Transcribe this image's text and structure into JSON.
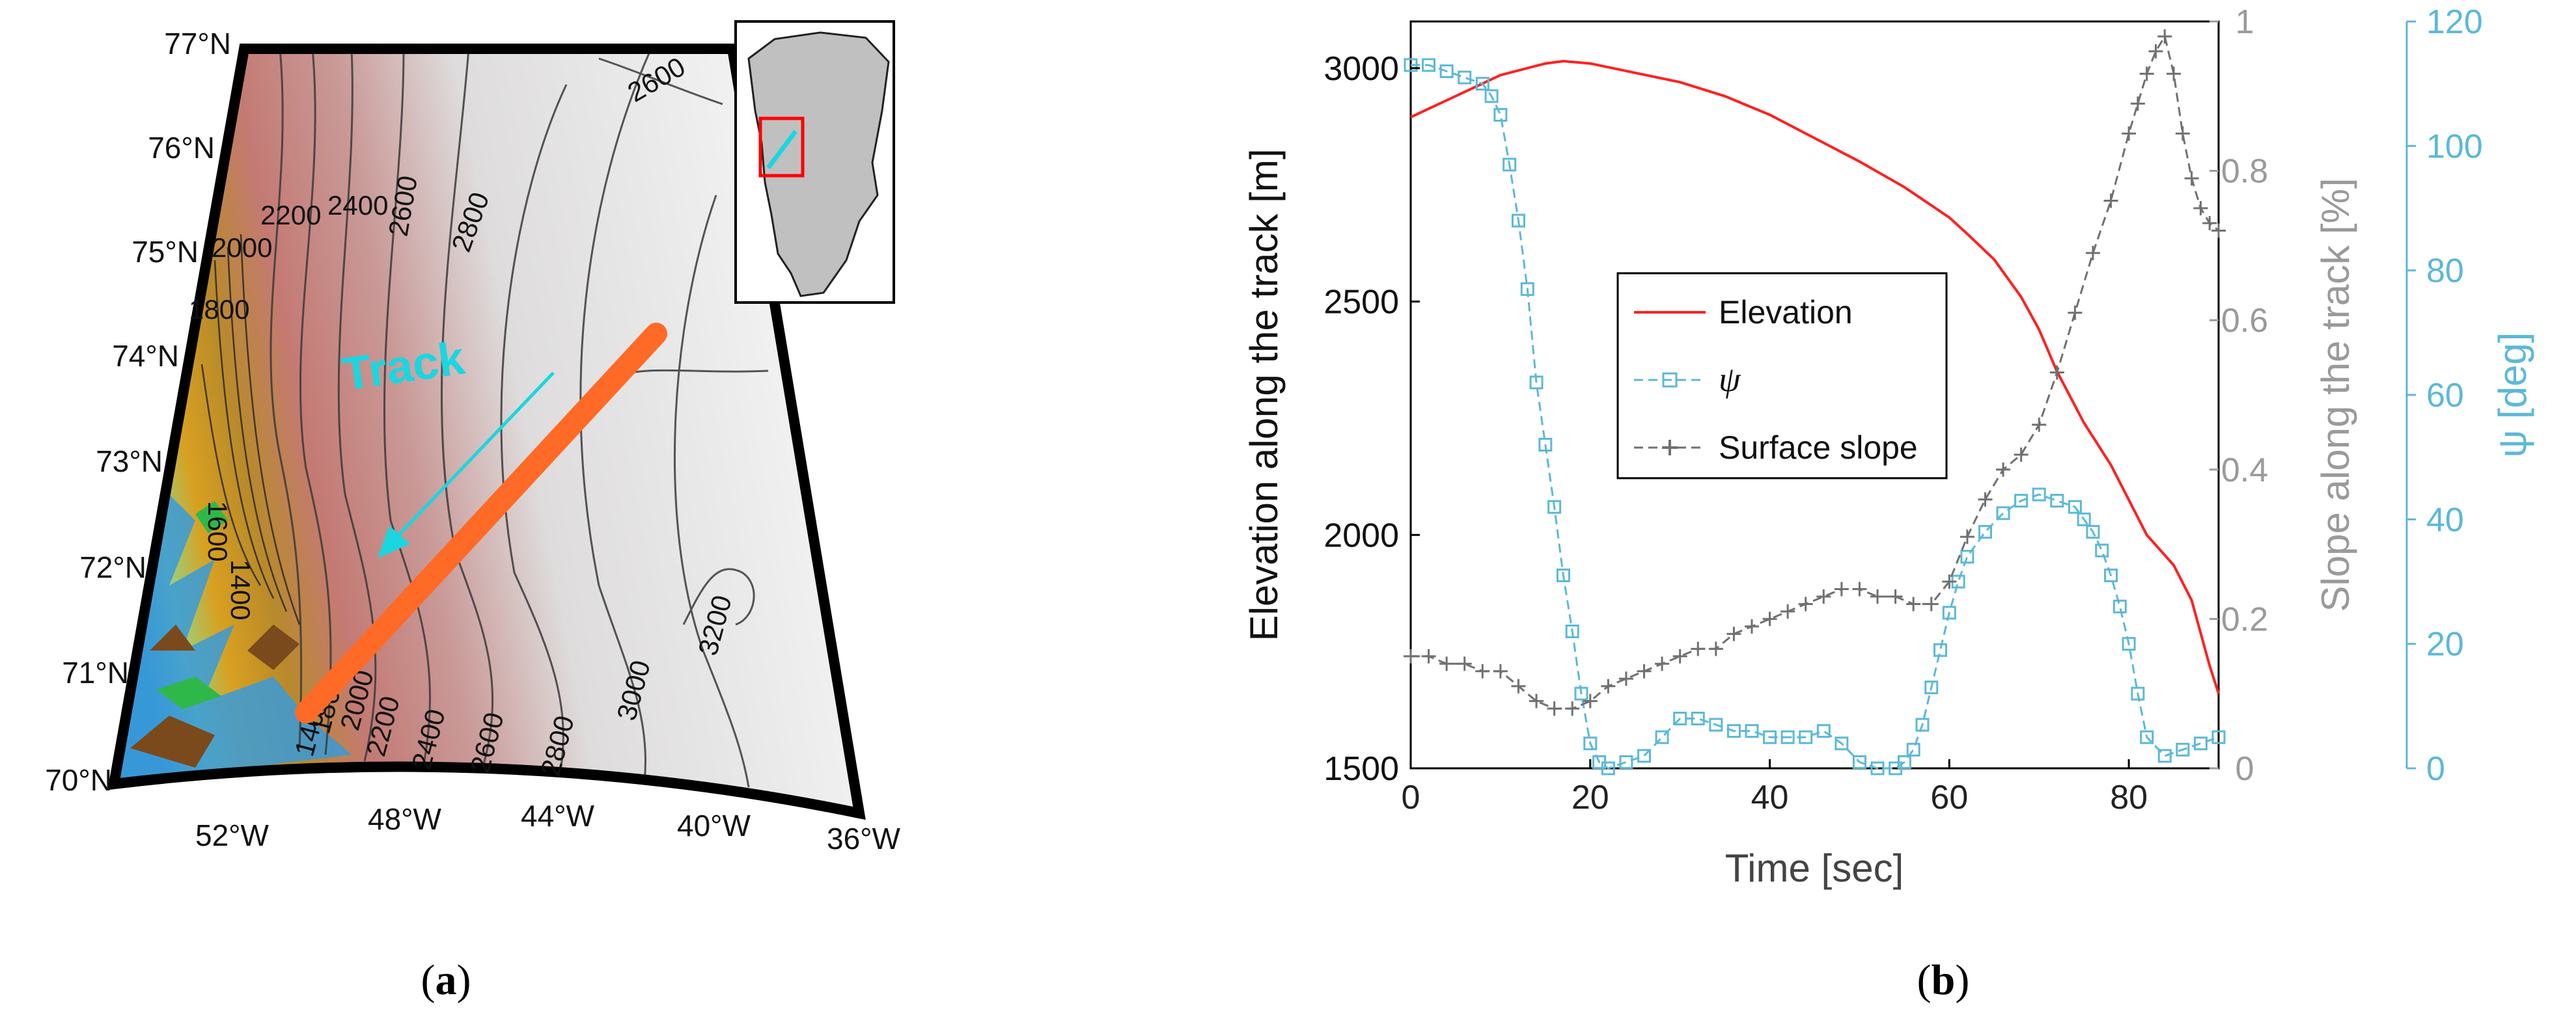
{
  "panel_a": {
    "label_open": "(",
    "label_letter": "a",
    "label_close": ")",
    "lat_labels": [
      "77°N",
      "76°N",
      "75°N",
      "74°N",
      "73°N",
      "72°N",
      "71°N",
      "70°N"
    ],
    "lon_labels": [
      "52°W",
      "48°W",
      "44°W",
      "40°W",
      "36°W"
    ],
    "contour_labels": [
      "2600",
      "2800",
      "2400",
      "2600",
      "2200",
      "2000",
      "1800",
      "1600",
      "1400",
      "3200",
      "3000",
      "2800",
      "2600",
      "2400",
      "2200",
      "2000",
      "1800",
      "1400"
    ],
    "track_label": "Track",
    "colors": {
      "track": "#ff6a26",
      "arrow": "#1ad6e0",
      "inset_box": "#ff0000",
      "frame": "#000000",
      "ice_high": "#e8e6e6",
      "ice_mid": "#c47a74",
      "coast": "#d8a020"
    }
  },
  "panel_b": {
    "label_open": "(",
    "label_letter": "b",
    "label_close": ")",
    "chart_data": {
      "type": "line",
      "title": "",
      "xlabel": "Time [sec]",
      "ylabel_left": "Elevation along the track [m]",
      "ylabel_right1": "Slope along the track [%]",
      "ylabel_right2": "ψ [deg]",
      "xlim": [
        0,
        90
      ],
      "xticks": [
        0,
        20,
        40,
        60,
        80
      ],
      "ylim_left": [
        1500,
        3100
      ],
      "yticks_left": [
        1500,
        2000,
        2500,
        3000
      ],
      "ylim_right1": [
        0,
        1
      ],
      "yticks_right1": [
        "0",
        "0.2",
        "0.4",
        "0.6",
        "0.8",
        "1"
      ],
      "ylim_right2": [
        0,
        120
      ],
      "yticks_right2": [
        "0",
        "20",
        "40",
        "60",
        "80",
        "100",
        "120"
      ],
      "legend": "inside-middle-left",
      "series": [
        {
          "name": "Elevation",
          "axis": "left",
          "color": "#ff2020",
          "marker": "none",
          "x": [
            0,
            5,
            10,
            15,
            17,
            20,
            25,
            30,
            35,
            40,
            45,
            50,
            55,
            60,
            62,
            65,
            68,
            70,
            72,
            75,
            78,
            80,
            82,
            85,
            87,
            88,
            89,
            90
          ],
          "y": [
            2895,
            2940,
            2985,
            3010,
            3015,
            3010,
            2990,
            2970,
            2940,
            2900,
            2850,
            2800,
            2745,
            2680,
            2645,
            2590,
            2510,
            2440,
            2350,
            2240,
            2150,
            2075,
            2000,
            1935,
            1860,
            1790,
            1720,
            1660
          ]
        },
        {
          "name": "ψ",
          "axis": "right2",
          "color": "#5cb8d8",
          "marker": "square",
          "x": [
            0,
            2,
            4,
            6,
            8,
            9,
            10,
            11,
            12,
            13,
            14,
            15,
            16,
            17,
            18,
            19,
            20,
            21,
            22,
            24,
            26,
            28,
            30,
            32,
            34,
            36,
            38,
            40,
            42,
            44,
            46,
            48,
            50,
            52,
            54,
            55,
            56,
            57,
            58,
            59,
            60,
            61,
            62,
            64,
            66,
            68,
            70,
            72,
            74,
            75,
            76,
            77,
            78,
            79,
            80,
            81,
            82,
            84,
            86,
            88,
            90
          ],
          "y": [
            113,
            113,
            112,
            111,
            110,
            108,
            105,
            97,
            88,
            77,
            62,
            52,
            42,
            31,
            22,
            12,
            4,
            1,
            0,
            1,
            2,
            5,
            8,
            8,
            7,
            6,
            6,
            5,
            5,
            5,
            6,
            4,
            1,
            0,
            0,
            1,
            3,
            7,
            13,
            19,
            25,
            30,
            34,
            38,
            41,
            43,
            44,
            43,
            42,
            40,
            38,
            35,
            31,
            26,
            20,
            12,
            5,
            2,
            3,
            4,
            5
          ]
        },
        {
          "name": "Surface slope",
          "axis": "right1",
          "color": "#707070",
          "marker": "plus",
          "x": [
            0,
            2,
            4,
            6,
            8,
            10,
            12,
            14,
            16,
            18,
            20,
            22,
            24,
            26,
            28,
            30,
            32,
            34,
            36,
            38,
            40,
            42,
            44,
            46,
            48,
            50,
            52,
            54,
            56,
            58,
            60,
            62,
            64,
            66,
            68,
            70,
            72,
            74,
            76,
            78,
            80,
            81,
            82,
            83,
            84,
            85,
            86,
            87,
            88,
            89,
            90
          ],
          "y": [
            0.15,
            0.15,
            0.14,
            0.14,
            0.13,
            0.13,
            0.11,
            0.09,
            0.08,
            0.08,
            0.09,
            0.11,
            0.12,
            0.13,
            0.14,
            0.15,
            0.16,
            0.16,
            0.18,
            0.19,
            0.2,
            0.21,
            0.22,
            0.23,
            0.24,
            0.24,
            0.23,
            0.23,
            0.22,
            0.22,
            0.25,
            0.31,
            0.36,
            0.4,
            0.42,
            0.46,
            0.53,
            0.61,
            0.69,
            0.76,
            0.85,
            0.89,
            0.93,
            0.96,
            0.98,
            0.93,
            0.85,
            0.79,
            0.75,
            0.73,
            0.72
          ]
        }
      ]
    }
  }
}
